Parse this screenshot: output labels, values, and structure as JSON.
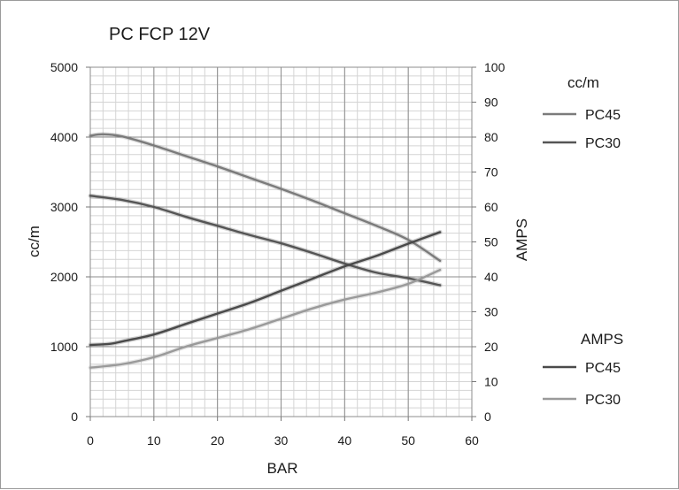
{
  "chart_data": {
    "type": "line",
    "title": "PC FCP 12V",
    "xlabel": "BAR",
    "ylabel": "cc/m",
    "y2label": "AMPS",
    "xlim": [
      0,
      60
    ],
    "ylim": [
      0,
      5000
    ],
    "y2lim": [
      0,
      100
    ],
    "x_ticks": [
      0,
      10,
      20,
      30,
      40,
      50,
      60
    ],
    "y_ticks": [
      0,
      1000,
      2000,
      3000,
      4000,
      5000
    ],
    "y2_ticks": [
      0,
      10,
      20,
      30,
      40,
      50,
      60,
      70,
      80,
      90,
      100
    ],
    "grid": true,
    "legend_groups": [
      {
        "title": "cc/m",
        "position": "top-right",
        "entries": [
          "PC45",
          "PC30"
        ]
      },
      {
        "title": "AMPS",
        "position": "bottom-right",
        "entries": [
          "PC45",
          "PC30"
        ]
      }
    ],
    "series": [
      {
        "name": "PC45",
        "axis": "left",
        "unit": "cc/m",
        "color": "#7b7b7b",
        "x": [
          0,
          2,
          5,
          10,
          15,
          20,
          25,
          30,
          35,
          40,
          45,
          50,
          55
        ],
        "y": [
          4020,
          4040,
          4010,
          3880,
          3730,
          3580,
          3420,
          3260,
          3090,
          2910,
          2730,
          2530,
          2230
        ]
      },
      {
        "name": "PC30",
        "axis": "left",
        "unit": "cc/m",
        "color": "#555555",
        "x": [
          0,
          5,
          10,
          15,
          20,
          25,
          30,
          35,
          40,
          45,
          50,
          55
        ],
        "y": [
          3160,
          3100,
          3000,
          2860,
          2730,
          2600,
          2480,
          2340,
          2190,
          2060,
          1980,
          1880
        ]
      },
      {
        "name": "PC45",
        "axis": "right",
        "unit": "AMPS",
        "color": "#4a4a4a",
        "x": [
          0,
          3,
          5,
          10,
          15,
          20,
          25,
          30,
          35,
          40,
          45,
          50,
          55
        ],
        "y": [
          20.5,
          20.8,
          21.5,
          23.5,
          26.5,
          29.5,
          32.5,
          36,
          39.5,
          43,
          46,
          49.5,
          52.8
        ]
      },
      {
        "name": "PC30",
        "axis": "right",
        "unit": "AMPS",
        "color": "#9a9a9a",
        "x": [
          0,
          5,
          10,
          15,
          20,
          25,
          30,
          35,
          40,
          45,
          50,
          55
        ],
        "y": [
          14,
          15,
          17,
          20,
          22.5,
          25,
          28,
          31,
          33.5,
          35.5,
          38,
          42
        ]
      }
    ]
  }
}
